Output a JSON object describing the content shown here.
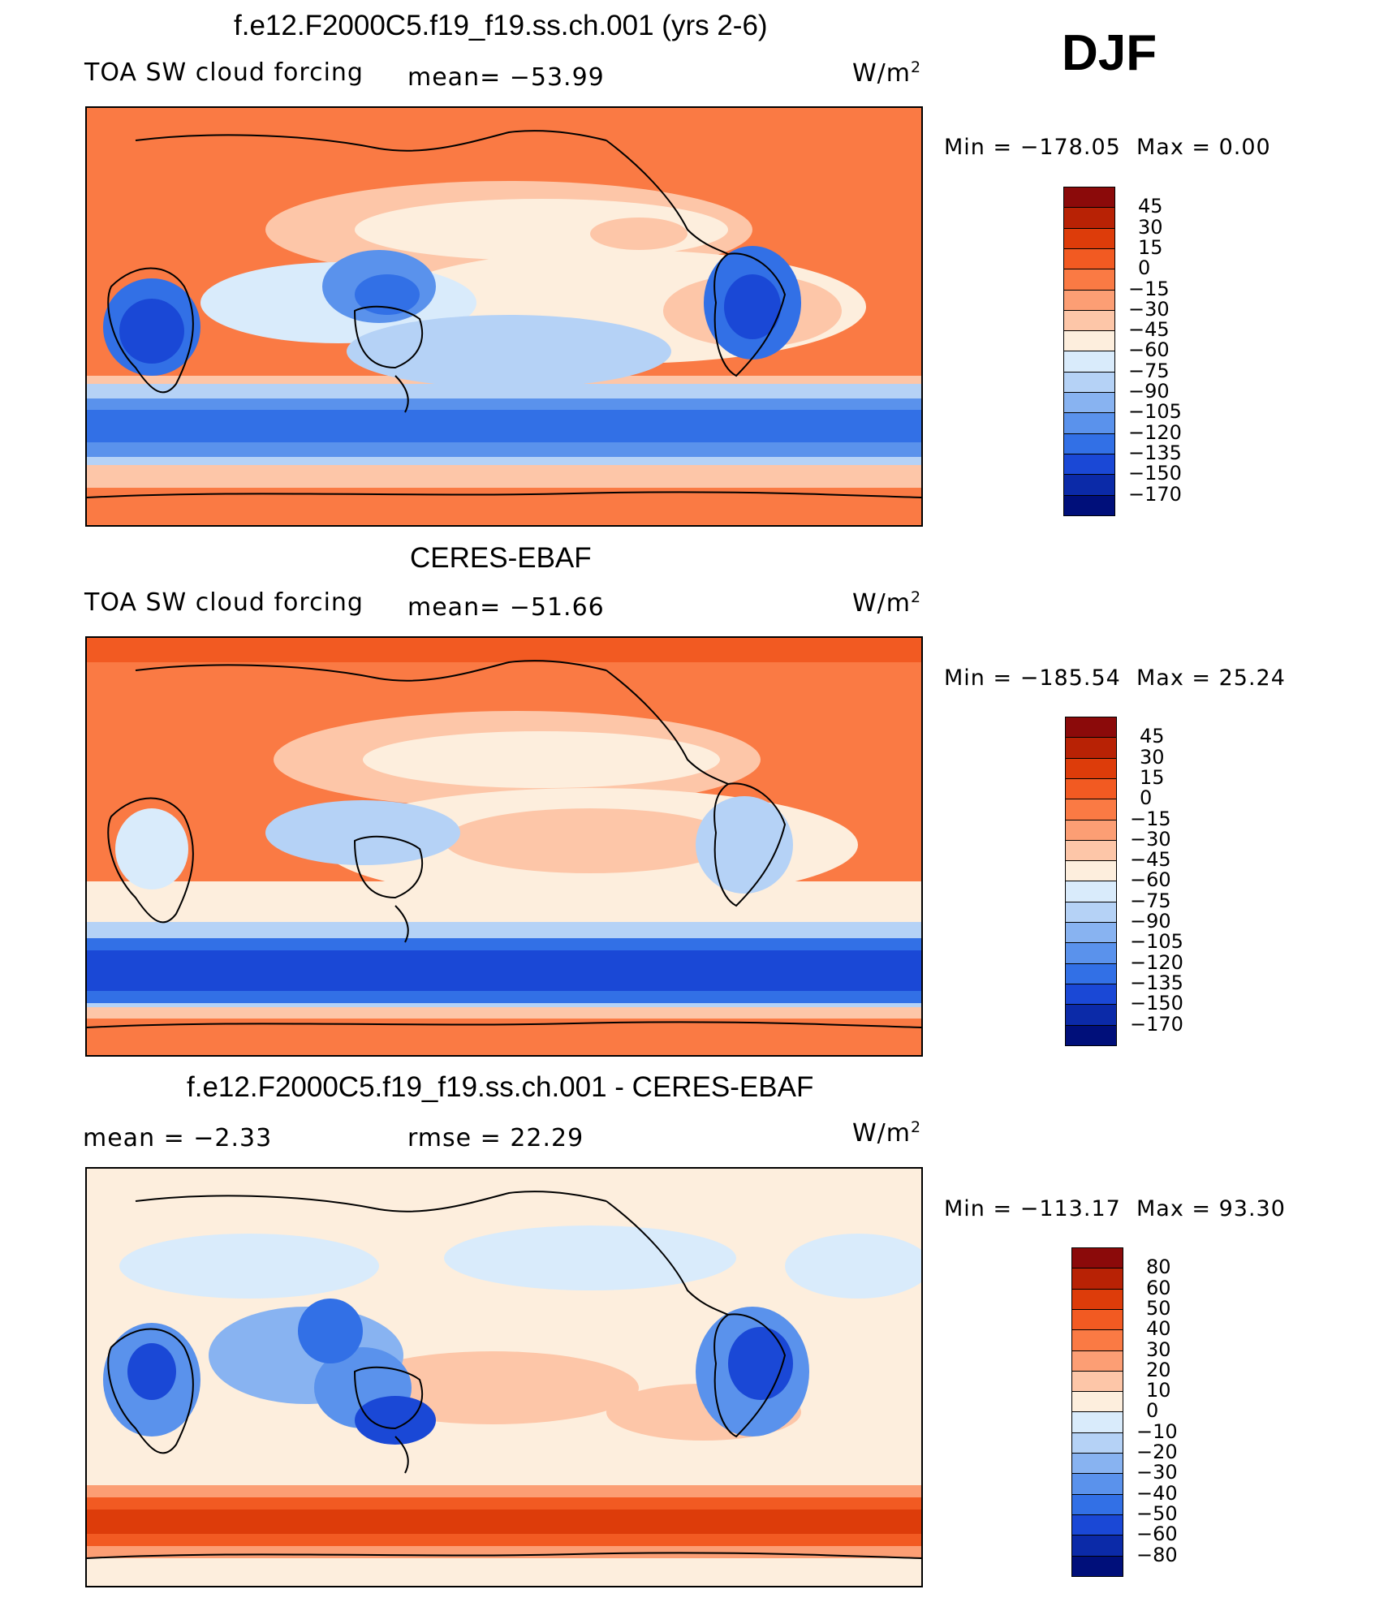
{
  "season": "DJF",
  "units_base": "W/m",
  "units_exp": "2",
  "panels": [
    {
      "title": "f.e12.F2000C5.f19_f19.ss.ch.001 (yrs 2-6)",
      "left_label": "TOA SW cloud forcing",
      "center_label": "mean=  −53.99",
      "min_label": "Min  =  −178.05",
      "max_label": "Max  =      0.00",
      "colorbar": {
        "levels": [
          "45",
          "30",
          "15",
          "0",
          "−15",
          "−30",
          "−45",
          "−60",
          "−75",
          "−90",
          "−105",
          "−120",
          "−135",
          "−150",
          "−170"
        ],
        "colors": [
          "#8b0a0a",
          "#b82205",
          "#dd3c0a",
          "#f25a22",
          "#fa7a44",
          "#fc9e74",
          "#fdc6a8",
          "#fdeedd",
          "#d9ebfb",
          "#b5d2f6",
          "#88b3f1",
          "#5a92ec",
          "#3270e6",
          "#1a48d6",
          "#0b2aa8",
          "#000f7a"
        ]
      }
    },
    {
      "title": "CERES-EBAF",
      "left_label": "TOA SW cloud forcing",
      "center_label": "mean=  −51.66",
      "min_label": "Min  =  −185.54",
      "max_label": "Max  =    25.24",
      "colorbar": {
        "levels": [
          "45",
          "30",
          "15",
          "0",
          "−15",
          "−30",
          "−45",
          "−60",
          "−75",
          "−90",
          "−105",
          "−120",
          "−135",
          "−150",
          "−170"
        ],
        "colors": [
          "#8b0a0a",
          "#b82205",
          "#dd3c0a",
          "#f25a22",
          "#fa7a44",
          "#fc9e74",
          "#fdc6a8",
          "#fdeedd",
          "#d9ebfb",
          "#b5d2f6",
          "#88b3f1",
          "#5a92ec",
          "#3270e6",
          "#1a48d6",
          "#0b2aa8",
          "#000f7a"
        ]
      }
    },
    {
      "title": "f.e12.F2000C5.f19_f19.ss.ch.001 - CERES-EBAF",
      "left_label": "mean  =     −2.33",
      "center_label": "rmse  =    22.29",
      "min_label": "Min  =  −113.17",
      "max_label": "Max  =    93.30",
      "colorbar": {
        "levels": [
          "80",
          "60",
          "50",
          "40",
          "30",
          "20",
          "10",
          "0",
          "−10",
          "−20",
          "−30",
          "−40",
          "−50",
          "−60",
          "−80"
        ],
        "colors": [
          "#8b0a0a",
          "#b82205",
          "#dd3c0a",
          "#f25a22",
          "#fa7a44",
          "#fc9e74",
          "#fdc6a8",
          "#fdeedd",
          "#d9ebfb",
          "#b5d2f6",
          "#88b3f1",
          "#5a92ec",
          "#3270e6",
          "#1a48d6",
          "#0b2aa8",
          "#000f7a"
        ]
      }
    }
  ]
}
